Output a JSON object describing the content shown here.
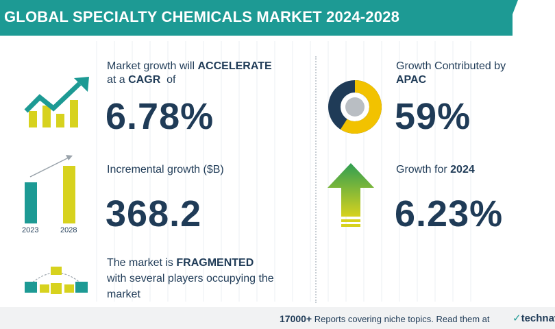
{
  "header": {
    "title": "GLOBAL SPECIALTY CHEMICALS MARKET 2024-2028"
  },
  "cagr": {
    "line1_prefix": "Market growth will ",
    "line1_strong": "ACCELERATE",
    "line2_prefix": "at a ",
    "line2_strong": "CAGR",
    "line2_suffix": "  of",
    "value": "6.78%"
  },
  "incremental": {
    "label": "Incremental growth ($B)",
    "value": "368.2",
    "bar_years": [
      "2023",
      "2028"
    ]
  },
  "fragmented": {
    "line1_prefix": "The market is ",
    "line1_strong": "FRAGMENTED",
    "line2": "with several players occupying the",
    "line3": "market"
  },
  "apac": {
    "line1": "Growth Contributed by",
    "line2_strong": "APAC",
    "value": "59%",
    "share_fraction": 0.59
  },
  "growth2024": {
    "label_prefix": "Growth for ",
    "label_strong": "2024",
    "value": "6.23%"
  },
  "footer": {
    "count": "17000+",
    "text": " Reports covering niche topics. Read them at",
    "logo": "technav"
  },
  "colors": {
    "teal": "#1d9a94",
    "navy": "#1f3b57",
    "yellow": "#d7d21e",
    "donut_yellow": "#f2c200",
    "arrow_green": "#3aa64a"
  }
}
